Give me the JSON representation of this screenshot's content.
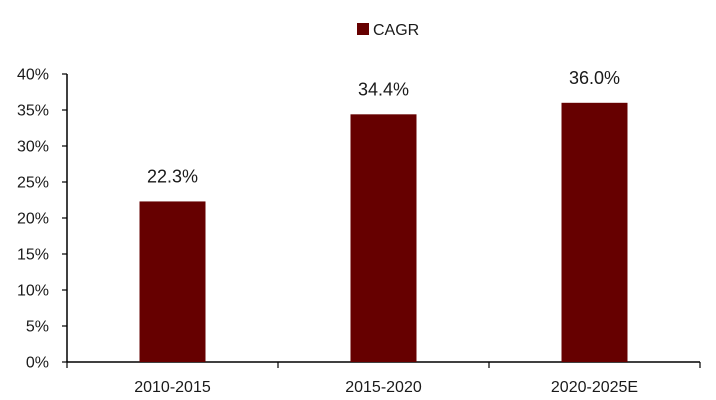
{
  "chart_data": {
    "type": "bar",
    "categories": [
      "2010-2015",
      "2015-2020",
      "2020-2025E"
    ],
    "series": [
      {
        "name": "CAGR",
        "values": [
          22.3,
          34.4,
          36.0
        ],
        "value_labels": [
          "22.3%",
          "34.4%",
          "36.0%"
        ],
        "color": "#660000"
      }
    ],
    "ylim": [
      0,
      40
    ],
    "yticks": [
      0,
      5,
      10,
      15,
      20,
      25,
      30,
      35,
      40
    ],
    "ytick_labels": [
      "0%",
      "5%",
      "10%",
      "15%",
      "20%",
      "25%",
      "30%",
      "35%",
      "40%"
    ],
    "legend_position": "top-center",
    "grid": false
  }
}
